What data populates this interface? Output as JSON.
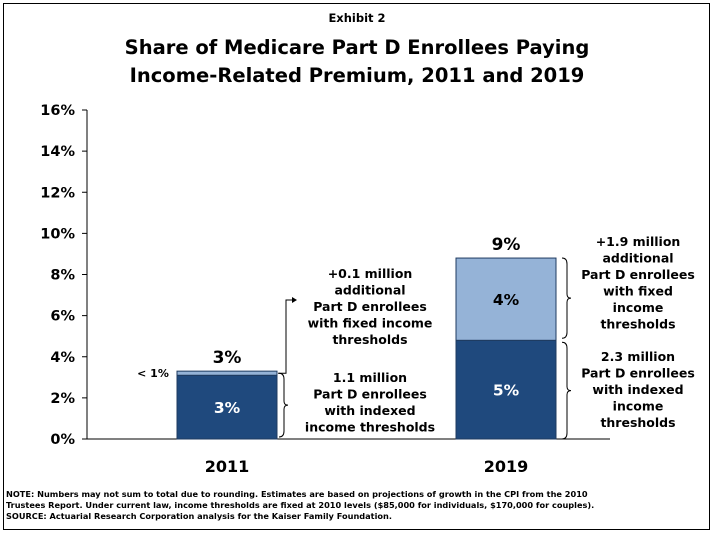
{
  "chart_data": {
    "type": "bar",
    "supertitle": "Exhibit 2",
    "title_lines": [
      "Share of Medicare Part D Enrollees Paying",
      "Income-Related Premium, 2011 and 2019"
    ],
    "categories": [
      "2011",
      "2019"
    ],
    "stack": [
      {
        "name": "indexed",
        "color": "#1f497d",
        "values": [
          3.1,
          4.8
        ],
        "labels": [
          "3%",
          "5%"
        ]
      },
      {
        "name": "fixed",
        "color": "#95b3d7",
        "values": [
          0.2,
          4.0
        ],
        "labels": [
          "",
          "4%"
        ]
      }
    ],
    "totals": [
      "3%",
      "9%"
    ],
    "small_label": "< 1%",
    "ylim": [
      0,
      16
    ],
    "yticks": [
      0,
      2,
      4,
      6,
      8,
      10,
      12,
      14,
      16
    ],
    "ytick_labels": [
      "0%",
      "2%",
      "4%",
      "6%",
      "8%",
      "10%",
      "12%",
      "14%",
      "16%"
    ],
    "annotations_2011": {
      "fixed": [
        "+0.1 million",
        "additional",
        "Part D enrollees",
        "with fixed income",
        "thresholds"
      ],
      "indexed": [
        "1.1 million",
        "Part D enrollees",
        "with indexed",
        "income thresholds"
      ]
    },
    "annotations_2019": {
      "fixed": [
        "+1.9 million",
        "additional",
        "Part D enrollees",
        "with fixed",
        "income",
        "thresholds"
      ],
      "indexed": [
        "2.3 million",
        "Part D enrollees",
        "with indexed",
        "income",
        "thresholds"
      ]
    }
  },
  "footer": {
    "note_line1": "NOTE: Numbers may not sum to total due to rounding. Estimates are based on projections of growth in the CPI from the 2010",
    "note_line2": "Trustees Report. Under current law, income thresholds are fixed at 2010 levels ($85,000 for individuals, $170,000 for couples).",
    "source": "SOURCE: Actuarial Research Corporation analysis for the Kaiser Family Foundation."
  }
}
